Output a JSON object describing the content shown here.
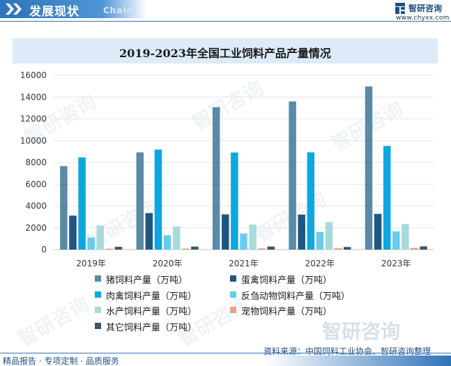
{
  "header": {
    "title": "发展现状",
    "subtitle": "Chain",
    "brand_name": "智研咨询",
    "brand_url": "www.chyxx.com"
  },
  "watermark": {
    "text": "智研咨询"
  },
  "chart_data": {
    "type": "bar",
    "title": "2019-2023年全国工业饲料产品产量情况",
    "categories": [
      "2019年",
      "2020年",
      "2021年",
      "2022年",
      "2023年"
    ],
    "ylim": [
      0,
      16000
    ],
    "yticks": [
      0,
      2000,
      4000,
      6000,
      8000,
      10000,
      12000,
      14000,
      16000
    ],
    "xlabel": "",
    "ylabel": "",
    "grid": true,
    "legend_position": "bottom",
    "series": [
      {
        "name": "猪饲料产量（万吨）",
        "color": "#5a8aa6",
        "values": [
          7663,
          8923,
          13077,
          13597,
          14975
        ]
      },
      {
        "name": "蛋禽饲料产量（万吨）",
        "color": "#1e5585",
        "values": [
          3117,
          3352,
          3231,
          3211,
          3275
        ]
      },
      {
        "name": "肉禽饲料产量（万吨）",
        "color": "#0fa5df",
        "values": [
          8465,
          9176,
          8910,
          8926,
          9511
        ]
      },
      {
        "name": "反刍动物饲料产量（万吨）",
        "color": "#68ccf0",
        "values": [
          1109,
          1319,
          1480,
          1617,
          1671
        ]
      },
      {
        "name": "水产饲料产量（万吨）",
        "color": "#a6dbd9",
        "values": [
          2203,
          2124,
          2293,
          2525,
          2345
        ]
      },
      {
        "name": "宠物饲料产量（万吨）",
        "color": "#ef9c86",
        "values": [
          87,
          97,
          113,
          123,
          151
        ]
      },
      {
        "name": "其它饲料产量（万吨）",
        "color": "#3c5568",
        "values": [
          252,
          276,
          279,
          237,
          295
        ]
      }
    ]
  },
  "footer": {
    "source": "资料来源：中国饲料工业协会、智研咨询整理",
    "tagline": "精品报告 · 专项定制 · 品质服务"
  }
}
